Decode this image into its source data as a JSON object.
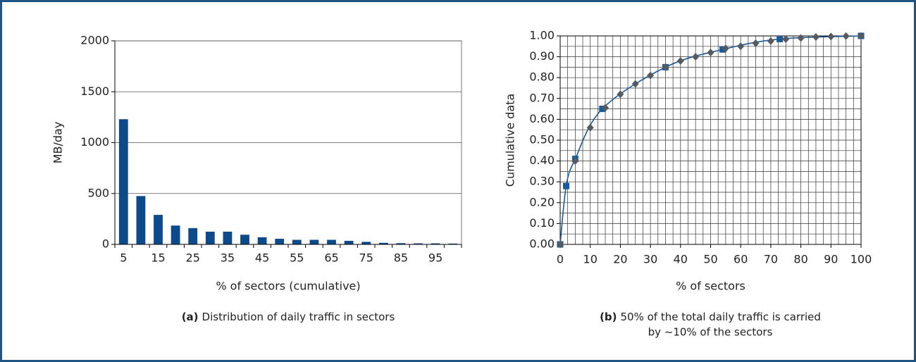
{
  "chart_data": [
    {
      "type": "bar",
      "ylabel": "MB/day",
      "xlabel": "% of sectors (cumulative)",
      "caption": {
        "label": "(a)",
        "text": "Distribution of daily traffic in sectors"
      },
      "categories": [
        "5",
        null,
        "15",
        null,
        "25",
        null,
        "35",
        null,
        "45",
        null,
        "55",
        null,
        "65",
        null,
        "75",
        null,
        "85",
        null,
        "95",
        null
      ],
      "values": [
        1230,
        475,
        290,
        185,
        160,
        125,
        125,
        95,
        70,
        55,
        45,
        45,
        45,
        35,
        25,
        15,
        12,
        10,
        10,
        8
      ],
      "color": "#0d4a8c",
      "ylim": [
        0,
        2000
      ],
      "yticks": [
        0,
        500,
        1000,
        1500,
        2000
      ],
      "grid": true
    },
    {
      "type": "line",
      "ylabel": "Cumulative data",
      "xlabel": "% of sectors",
      "caption": {
        "label": "(b)",
        "text": "50% of the total daily traffic is carried",
        "text2": "by ~10% of the sectors"
      },
      "series": [
        {
          "color": "#1a5a96",
          "marker": "square",
          "line": true,
          "x": [
            0,
            2,
            5,
            14,
            35,
            54,
            73,
            100
          ],
          "values": [
            0,
            0.28,
            0.41,
            0.65,
            0.85,
            0.935,
            0.985,
            1.0
          ]
        },
        {
          "color": "#555a60",
          "marker": "diamond",
          "line": false,
          "x": [
            0,
            5,
            10,
            15,
            20,
            25,
            30,
            35,
            40,
            45,
            50,
            55,
            60,
            65,
            70,
            75,
            80,
            85,
            90,
            95,
            100
          ],
          "values": [
            0,
            0.4,
            0.56,
            0.655,
            0.72,
            0.77,
            0.81,
            0.85,
            0.88,
            0.9,
            0.92,
            0.94,
            0.95,
            0.965,
            0.975,
            0.985,
            0.99,
            0.995,
            0.997,
            0.999,
            1.0
          ]
        }
      ],
      "xlim": [
        0,
        100
      ],
      "xticks": [
        0,
        10,
        20,
        30,
        40,
        50,
        60,
        70,
        80,
        90,
        100
      ],
      "ylim": [
        0,
        1
      ],
      "yticks": [
        {
          "value": 0,
          "label": "0.00"
        },
        {
          "value": 0.1,
          "label": "0.10"
        },
        {
          "value": 0.2,
          "label": "0.20"
        },
        {
          "value": 0.3,
          "label": "0.30"
        },
        {
          "value": 0.4,
          "label": "0.40"
        },
        {
          "value": 0.5,
          "label": "0.50"
        },
        {
          "value": 0.6,
          "label": "0.60"
        },
        {
          "value": 0.7,
          "label": "0.70"
        },
        {
          "value": 0.8,
          "label": "0.80"
        },
        {
          "value": 0.9,
          "label": "0.90"
        },
        {
          "value": 1.0,
          "label": "1.00"
        }
      ],
      "grid": true,
      "grid_divisions": {
        "x": 4,
        "y": 2
      }
    }
  ]
}
